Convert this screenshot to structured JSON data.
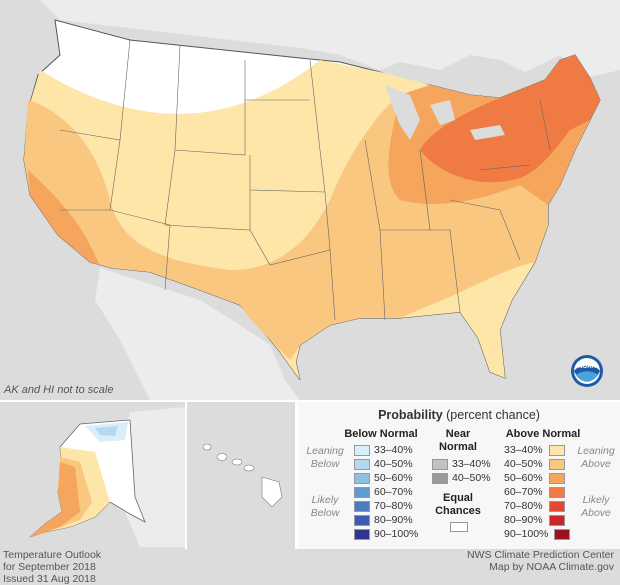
{
  "map": {
    "scale_note": "AK and HI not to scale",
    "agency_logo": "noaa-logo"
  },
  "legend": {
    "title_bold": "Probability",
    "title_rest": " (percent chance)",
    "below": {
      "heading": "Below Normal",
      "leaning_label_1": "Leaning",
      "leaning_label_2": "Below",
      "likely_label_1": "Likely",
      "likely_label_2": "Below",
      "items": [
        {
          "label": "33–40%",
          "color": "#d8eef8"
        },
        {
          "label": "40–50%",
          "color": "#b4d9ee"
        },
        {
          "label": "50–60%",
          "color": "#8cc0e0"
        },
        {
          "label": "60–70%",
          "color": "#5e9cd0"
        },
        {
          "label": "70–80%",
          "color": "#4a7cc0"
        },
        {
          "label": "80–90%",
          "color": "#3d5ab0"
        },
        {
          "label": "90–100%",
          "color": "#2e3690"
        }
      ]
    },
    "near": {
      "heading_1": "Near",
      "heading_2": "Normal",
      "items": [
        {
          "label": "33–40%",
          "color": "#c2c2c2"
        },
        {
          "label": "40–50%",
          "color": "#9a9a9a"
        }
      ],
      "equal_1": "Equal",
      "equal_2": "Chances",
      "equal_color": "#ffffff"
    },
    "above": {
      "heading": "Above Normal",
      "leaning_label_1": "Leaning",
      "leaning_label_2": "Above",
      "likely_label_1": "Likely",
      "likely_label_2": "Above",
      "items": [
        {
          "label": "33–40%",
          "color": "#fde6a8"
        },
        {
          "label": "40–50%",
          "color": "#f9c77f"
        },
        {
          "label": "50–60%",
          "color": "#f5a55c"
        },
        {
          "label": "60–70%",
          "color": "#ef7a43"
        },
        {
          "label": "70–80%",
          "color": "#e04832"
        },
        {
          "label": "80–90%",
          "color": "#c82828"
        },
        {
          "label": "90–100%",
          "color": "#9a1220"
        }
      ]
    }
  },
  "footer": {
    "left_line1": "Temperature Outlook",
    "left_line2": "for September 2018",
    "left_line3": "Issued 31 Aug 2018",
    "right_line1": "NWS Climate Prediction Center",
    "right_line2": "Map by NOAA Climate.gov"
  }
}
